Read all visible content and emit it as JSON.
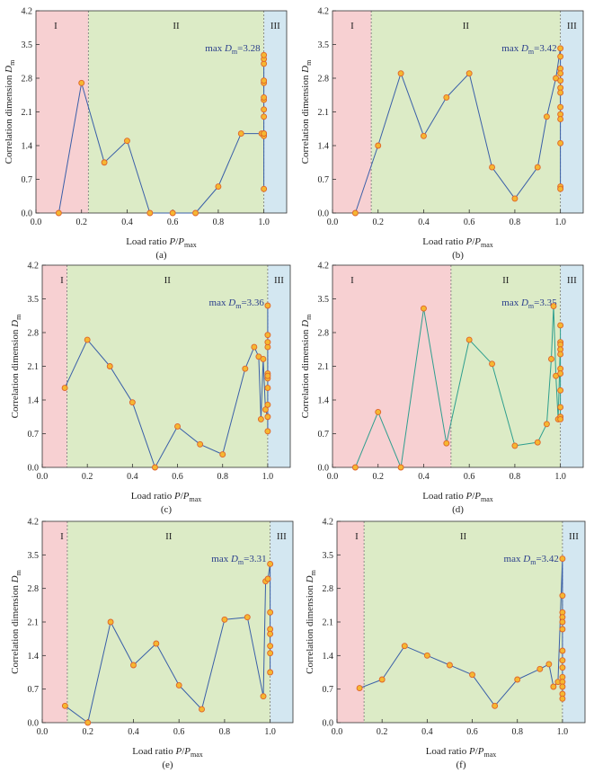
{
  "chart_data": [
    {
      "type": "line",
      "caption": "(a)",
      "xlabel_main": "Load ratio ",
      "xlabel_var": "P",
      "xlabel_sep": "/",
      "xlabel_var2": "P",
      "xlabel_sub": "max",
      "ylabel_main": "Correlation dimension ",
      "ylabel_var": "D",
      "ylabel_sub": "m",
      "xlim": [
        0,
        1.1
      ],
      "ylim": [
        0,
        4.2
      ],
      "x_ticks": [
        "0.0",
        "0.2",
        "0.4",
        "0.6",
        "0.8",
        "1.0"
      ],
      "y_ticks": [
        "0.0",
        "0.7",
        "1.4",
        "2.1",
        "2.8",
        "3.5",
        "4.2"
      ],
      "regions": [
        {
          "label": "I",
          "from": 0,
          "to": 0.23,
          "color": "#f7d0d2"
        },
        {
          "label": "II",
          "from": 0.23,
          "to": 1.0,
          "color": "#dcebc6"
        },
        {
          "label": "III",
          "from": 1.0,
          "to": 1.1,
          "color": "#d3e7f1"
        }
      ],
      "annotation": {
        "prefix": "max ",
        "var": "D",
        "sub": "m",
        "value": "=3.28"
      },
      "line_color": "#3a5fa8",
      "x": [
        0.1,
        0.2,
        0.3,
        0.4,
        0.5,
        0.6,
        0.7,
        0.8,
        0.9,
        0.99,
        1.0,
        1.0,
        1.0,
        1.0,
        1.0,
        1.0,
        1.0,
        1.0,
        1.0,
        1.0,
        1.0,
        1.0,
        1.0
      ],
      "y": [
        0.0,
        2.7,
        1.05,
        1.5,
        0.0,
        0.0,
        0.0,
        0.55,
        1.65,
        1.65,
        1.6,
        1.65,
        2.0,
        2.15,
        2.35,
        2.4,
        2.7,
        2.75,
        3.1,
        3.2,
        3.28,
        1.65,
        0.5
      ]
    },
    {
      "type": "line",
      "caption": "(b)",
      "xlabel_main": "Load ratio ",
      "xlabel_var": "P",
      "xlabel_sep": "/",
      "xlabel_var2": "P",
      "xlabel_sub": "max",
      "ylabel_main": "Correlation dimension ",
      "ylabel_var": "D",
      "ylabel_sub": "m",
      "xlim": [
        0,
        1.1
      ],
      "ylim": [
        0,
        4.2
      ],
      "x_ticks": [
        "0.0",
        "0.2",
        "0.4",
        "0.6",
        "0.8",
        "1.0"
      ],
      "y_ticks": [
        "0.0",
        "0.7",
        "1.4",
        "2.1",
        "2.8",
        "3.5",
        "4.2"
      ],
      "regions": [
        {
          "label": "I",
          "from": 0,
          "to": 0.17,
          "color": "#f7d0d2"
        },
        {
          "label": "II",
          "from": 0.17,
          "to": 1.0,
          "color": "#dcebc6"
        },
        {
          "label": "III",
          "from": 1.0,
          "to": 1.1,
          "color": "#d3e7f1"
        }
      ],
      "annotation": {
        "prefix": "max ",
        "var": "D",
        "sub": "m",
        "value": "=3.42"
      },
      "line_color": "#3a5fa8",
      "x": [
        0.1,
        0.2,
        0.3,
        0.4,
        0.5,
        0.6,
        0.7,
        0.8,
        0.9,
        0.94,
        0.98,
        1.0,
        1.0,
        1.0,
        1.0,
        1.0,
        1.0,
        1.0,
        1.0,
        1.0,
        1.0,
        1.0,
        1.0,
        1.0
      ],
      "y": [
        0.0,
        1.4,
        2.9,
        1.6,
        2.4,
        2.9,
        0.95,
        0.3,
        0.95,
        2.0,
        2.8,
        3.42,
        3.25,
        3.0,
        2.9,
        2.75,
        2.6,
        2.5,
        2.2,
        2.05,
        1.95,
        1.45,
        0.55,
        0.5
      ]
    },
    {
      "type": "line",
      "caption": "(c)",
      "xlabel_main": "Load ratio ",
      "xlabel_var": "P",
      "xlabel_sep": "/",
      "xlabel_var2": "P",
      "xlabel_sub": "max",
      "ylabel_main": "Correlation dimension ",
      "ylabel_var": "D",
      "ylabel_sub": "m",
      "xlim": [
        0,
        1.1
      ],
      "ylim": [
        0,
        4.2
      ],
      "x_ticks": [
        "0.0",
        "0.2",
        "0.4",
        "0.6",
        "0.8",
        "1.0"
      ],
      "y_ticks": [
        "0.0",
        "0.7",
        "1.4",
        "2.1",
        "2.8",
        "3.5",
        "4.2"
      ],
      "regions": [
        {
          "label": "I",
          "from": 0,
          "to": 0.11,
          "color": "#f7d0d2"
        },
        {
          "label": "II",
          "from": 0.11,
          "to": 1.0,
          "color": "#dcebc6"
        },
        {
          "label": "III",
          "from": 1.0,
          "to": 1.1,
          "color": "#d3e7f1"
        }
      ],
      "annotation": {
        "prefix": "max ",
        "var": "D",
        "sub": "m",
        "value": "=3.36"
      },
      "line_color": "#3a5fa8",
      "x": [
        0.1,
        0.2,
        0.3,
        0.4,
        0.5,
        0.6,
        0.7,
        0.8,
        0.9,
        0.94,
        0.96,
        0.97,
        0.98,
        0.99,
        1.0,
        1.0,
        1.0,
        1.0,
        1.0,
        1.0,
        1.0,
        1.0,
        1.0,
        1.0,
        1.0
      ],
      "y": [
        1.65,
        2.65,
        2.1,
        1.35,
        0.0,
        0.85,
        0.48,
        0.27,
        2.05,
        2.5,
        2.3,
        1.0,
        2.25,
        1.2,
        1.05,
        1.3,
        1.65,
        1.85,
        1.95,
        2.5,
        2.6,
        2.75,
        3.36,
        0.75,
        1.9
      ]
    },
    {
      "type": "line",
      "caption": "(d)",
      "xlabel_main": "Load ratio ",
      "xlabel_var": "P",
      "xlabel_sep": "/",
      "xlabel_var2": "P",
      "xlabel_sub": "max",
      "ylabel_main": "Correlation dimension ",
      "ylabel_var": "D",
      "ylabel_sub": "m",
      "xlim": [
        0,
        1.1
      ],
      "ylim": [
        0,
        4.2
      ],
      "x_ticks": [
        "0.0",
        "0.2",
        "0.4",
        "0.6",
        "0.8",
        "1.0"
      ],
      "y_ticks": [
        "0.0",
        "0.7",
        "1.4",
        "2.1",
        "2.8",
        "3.5",
        "4.2"
      ],
      "regions": [
        {
          "label": "I",
          "from": 0,
          "to": 0.52,
          "color": "#f7d0d2"
        },
        {
          "label": "II",
          "from": 0.52,
          "to": 1.0,
          "color": "#dcebc6"
        },
        {
          "label": "III",
          "from": 1.0,
          "to": 1.1,
          "color": "#d3e7f1"
        }
      ],
      "annotation": {
        "prefix": "max ",
        "var": "D",
        "sub": "m",
        "value": "=3.35"
      },
      "line_color": "#2e9e8e",
      "x": [
        0.1,
        0.2,
        0.3,
        0.4,
        0.5,
        0.6,
        0.7,
        0.8,
        0.9,
        0.94,
        0.96,
        0.97,
        0.98,
        0.99,
        1.0,
        1.0,
        1.0,
        1.0,
        1.0,
        1.0,
        1.0,
        1.0,
        1.0,
        1.0,
        1.0
      ],
      "y": [
        0.0,
        1.15,
        0.0,
        3.3,
        0.5,
        2.65,
        2.15,
        0.45,
        0.52,
        0.9,
        2.25,
        3.35,
        1.9,
        1.0,
        2.6,
        2.55,
        2.45,
        2.35,
        2.05,
        1.95,
        1.6,
        1.25,
        1.05,
        2.95,
        1.0
      ]
    },
    {
      "type": "line",
      "caption": "(e)",
      "xlabel_main": "Load ratio ",
      "xlabel_var": "P",
      "xlabel_sep": "/",
      "xlabel_var2": "P",
      "xlabel_sub": "max",
      "ylabel_main": "Correlation dimension ",
      "ylabel_var": "D",
      "ylabel_sub": "m",
      "xlim": [
        0,
        1.1
      ],
      "ylim": [
        0,
        4.2
      ],
      "x_ticks": [
        "0.0",
        "0.2",
        "0.4",
        "0.6",
        "0.8",
        "1.0"
      ],
      "y_ticks": [
        "0.0",
        "0.7",
        "1.4",
        "2.1",
        "2.8",
        "3.5",
        "4.2"
      ],
      "regions": [
        {
          "label": "I",
          "from": 0,
          "to": 0.11,
          "color": "#f7d0d2"
        },
        {
          "label": "II",
          "from": 0.11,
          "to": 1.0,
          "color": "#dcebc6"
        },
        {
          "label": "III",
          "from": 1.0,
          "to": 1.1,
          "color": "#d3e7f1"
        }
      ],
      "annotation": {
        "prefix": "max ",
        "var": "D",
        "sub": "m",
        "value": "=3.31"
      },
      "line_color": "#3a5fa8",
      "x": [
        0.1,
        0.2,
        0.3,
        0.4,
        0.5,
        0.6,
        0.7,
        0.8,
        0.9,
        0.97,
        0.98,
        0.99,
        1.0,
        1.0,
        1.0,
        1.0,
        1.0,
        1.0,
        1.0
      ],
      "y": [
        0.35,
        0.0,
        2.1,
        1.2,
        1.65,
        0.78,
        0.28,
        2.15,
        2.2,
        0.55,
        2.95,
        3.0,
        3.31,
        2.3,
        1.95,
        1.85,
        1.6,
        1.45,
        1.05
      ]
    },
    {
      "type": "line",
      "caption": "(f)",
      "xlabel_main": "Load ratio ",
      "xlabel_var": "P",
      "xlabel_sep": "/",
      "xlabel_var2": "P",
      "xlabel_sub": "max",
      "ylabel_main": "Correlation dimension ",
      "ylabel_var": "D",
      "ylabel_sub": "m",
      "xlim": [
        0,
        1.1
      ],
      "ylim": [
        0,
        4.2
      ],
      "x_ticks": [
        "0.0",
        "0.2",
        "0.4",
        "0.6",
        "0.8",
        "1.0"
      ],
      "y_ticks": [
        "0.0",
        "0.7",
        "1.4",
        "2.1",
        "2.8",
        "3.5",
        "4.2"
      ],
      "regions": [
        {
          "label": "I",
          "from": 0,
          "to": 0.12,
          "color": "#f7d0d2"
        },
        {
          "label": "II",
          "from": 0.12,
          "to": 1.0,
          "color": "#dcebc6"
        },
        {
          "label": "III",
          "from": 1.0,
          "to": 1.1,
          "color": "#d3e7f1"
        }
      ],
      "annotation": {
        "prefix": "max ",
        "var": "D",
        "sub": "m",
        "value": "=3.42"
      },
      "line_color": "#3a5fa8",
      "x": [
        0.1,
        0.2,
        0.3,
        0.4,
        0.5,
        0.6,
        0.7,
        0.8,
        0.9,
        0.94,
        0.96,
        0.98,
        1.0,
        1.0,
        1.0,
        1.0,
        1.0,
        1.0,
        1.0,
        1.0,
        1.0,
        1.0,
        1.0,
        1.0,
        1.0,
        1.0
      ],
      "y": [
        0.72,
        0.9,
        1.6,
        1.4,
        1.2,
        1.0,
        0.35,
        0.9,
        1.12,
        1.22,
        0.75,
        0.85,
        3.42,
        2.65,
        2.3,
        2.2,
        2.1,
        1.95,
        1.5,
        1.3,
        1.15,
        0.95,
        0.85,
        0.75,
        0.6,
        0.5
      ]
    }
  ]
}
